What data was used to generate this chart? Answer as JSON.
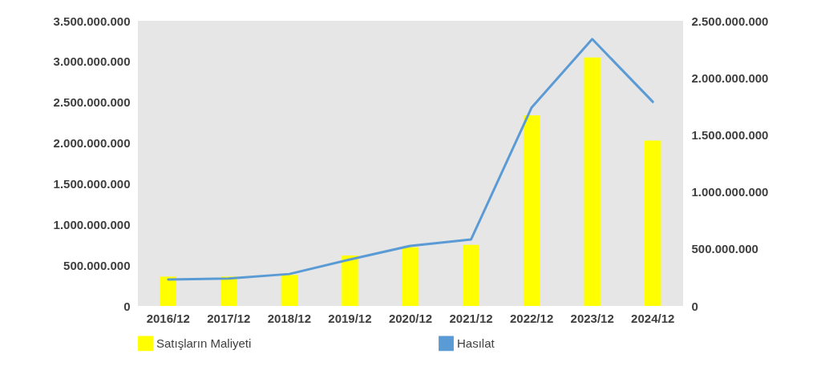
{
  "chart_data": {
    "type": "bar",
    "categories": [
      "2016/12",
      "2017/12",
      "2018/12",
      "2019/12",
      "2020/12",
      "2021/12",
      "2022/12",
      "2023/12",
      "2024/12"
    ],
    "series": [
      {
        "name": "Satışların Maliyeti",
        "color": "#ffff00",
        "values": [
          360000000,
          360000000,
          380000000,
          620000000,
          720000000,
          750000000,
          2340000000,
          3050000000,
          2030000000
        ]
      },
      {
        "name": "Hasılat",
        "color": "#5b9bd5",
        "type": "line",
        "axis": "y2",
        "values": [
          232000000,
          240000000,
          280000000,
          407000000,
          527000000,
          583000000,
          1740000000,
          2340000000,
          1790000000
        ]
      }
    ],
    "ylim": [
      0,
      3500000000
    ],
    "yticks": [
      0,
      {
        "value": 500000000,
        "label": "500.000.000"
      },
      {
        "value": 1000000000,
        "label": "1.000.000.000"
      },
      {
        "value": 1500000000,
        "label": "1.500.000.000"
      },
      {
        "value": 2000000000,
        "label": "2.000.000.000"
      },
      {
        "value": 2500000000,
        "label": "2.500.000.000"
      },
      {
        "value": 3000000000,
        "label": "3.000.000.000"
      },
      {
        "value": 3500000000,
        "label": "3.500.000.000"
      }
    ],
    "y2lim": [
      0,
      2500000000
    ],
    "y2ticks": [
      0,
      {
        "value": 500000000,
        "label": "500.000.000"
      },
      {
        "value": 1000000000,
        "label": "1.000.000.000"
      },
      {
        "value": 1500000000,
        "label": "1.500.000.000"
      },
      {
        "value": 2000000000,
        "label": "2.000.000.000"
      },
      {
        "value": 2500000000,
        "label": "2.500.000.000"
      }
    ],
    "legend": "bottom",
    "grid": false
  }
}
